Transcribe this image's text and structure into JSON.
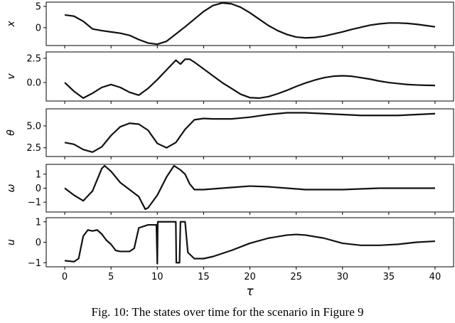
{
  "chart_data": [
    {
      "type": "line",
      "ylabel": "x",
      "color": "#111111",
      "x": [
        0,
        1,
        2,
        3,
        4,
        5,
        6,
        7,
        8,
        9,
        10,
        11,
        12,
        13,
        14,
        15,
        16,
        17,
        18,
        19,
        20,
        21,
        22,
        23,
        24,
        25,
        26,
        27,
        28,
        29,
        30,
        31,
        32,
        33,
        34,
        35,
        36,
        37,
        38,
        39,
        40
      ],
      "values": [
        3,
        2.7,
        1.5,
        -0.3,
        -0.7,
        -1,
        -1.3,
        -1.8,
        -2.8,
        -3.6,
        -3.9,
        -3.2,
        -1.5,
        0.2,
        2,
        3.8,
        5.2,
        5.8,
        5.6,
        4.8,
        3.5,
        2,
        0.5,
        -0.7,
        -1.6,
        -2.2,
        -2.4,
        -2.3,
        -2,
        -1.5,
        -1,
        -0.4,
        0.1,
        0.6,
        0.9,
        1.1,
        1.1,
        1,
        0.8,
        0.5,
        0.2
      ],
      "xlim": [
        -2,
        42
      ],
      "ylim": [
        -4.2,
        6
      ],
      "yticks": [
        0,
        5
      ]
    },
    {
      "type": "line",
      "ylabel": "v",
      "color": "#111111",
      "x": [
        0,
        1,
        2,
        3,
        4,
        5,
        6,
        7,
        8,
        9,
        10,
        11,
        12,
        12.5,
        13,
        13.5,
        14,
        15,
        16,
        17,
        18,
        19,
        20,
        21,
        22,
        23,
        24,
        25,
        26,
        27,
        28,
        29,
        30,
        31,
        32,
        33,
        34,
        35,
        36,
        37,
        38,
        39,
        40
      ],
      "values": [
        0,
        -0.9,
        -1.6,
        -1.1,
        -0.5,
        -0.2,
        -0.5,
        -1.0,
        -1.3,
        -0.6,
        0.3,
        1.3,
        2.3,
        1.9,
        2.4,
        2.4,
        2.1,
        1.4,
        0.7,
        0.0,
        -0.6,
        -1.2,
        -1.55,
        -1.6,
        -1.45,
        -1.15,
        -0.8,
        -0.4,
        -0.05,
        0.25,
        0.5,
        0.65,
        0.7,
        0.65,
        0.5,
        0.35,
        0.15,
        0,
        -0.1,
        -0.2,
        -0.25,
        -0.28,
        -0.3
      ],
      "xlim": [
        -2,
        42
      ],
      "ylim": [
        -1.9,
        3.15
      ],
      "yticks": [
        {
          "value": 0,
          "label": "0.0"
        },
        2.5
      ]
    },
    {
      "type": "line",
      "ylabel": "θ",
      "color": "#111111",
      "x": [
        0,
        1,
        2,
        3,
        4,
        5,
        6,
        7,
        8,
        9,
        10,
        11,
        12,
        13,
        14,
        15,
        16,
        17,
        18,
        19,
        20,
        21,
        22,
        23,
        24,
        25,
        26,
        27,
        28,
        29,
        30,
        31,
        32,
        33,
        34,
        35,
        36,
        37,
        38,
        39,
        40
      ],
      "values": [
        3.1,
        2.9,
        2.3,
        2.0,
        2.6,
        3.9,
        4.9,
        5.3,
        5.2,
        4.5,
        3.0,
        2.5,
        3.1,
        4.6,
        5.7,
        5.85,
        5.8,
        5.8,
        5.8,
        5.9,
        6.0,
        6.15,
        6.3,
        6.4,
        6.5,
        6.5,
        6.5,
        6.45,
        6.4,
        6.35,
        6.3,
        6.25,
        6.2,
        6.2,
        6.2,
        6.2,
        6.2,
        6.25,
        6.3,
        6.35,
        6.4
      ],
      "xlim": [
        -2,
        42
      ],
      "ylim": [
        1.5,
        6.95
      ],
      "yticks": [
        2.5,
        {
          "value": 5,
          "label": "5.0"
        }
      ]
    },
    {
      "type": "line",
      "ylabel": "ω",
      "color": "#111111",
      "x": [
        0,
        1,
        2,
        3,
        4,
        4.3,
        5,
        6,
        7,
        8,
        8.7,
        9,
        10,
        11,
        11.8,
        12.5,
        13,
        13.5,
        14,
        15,
        16,
        18,
        20,
        22,
        24,
        26,
        28,
        30,
        32,
        34,
        36,
        38,
        40
      ],
      "values": [
        0,
        -0.5,
        -0.9,
        -0.2,
        1.4,
        1.6,
        1.2,
        0.4,
        -0.1,
        -0.6,
        -1.5,
        -1.4,
        -0.5,
        0.8,
        1.6,
        1.3,
        1.0,
        0.3,
        -0.1,
        -0.1,
        -0.05,
        0.05,
        0.15,
        0.1,
        0,
        -0.1,
        -0.1,
        -0.1,
        -0.05,
        0,
        0,
        0,
        0
      ],
      "xlim": [
        -2,
        42
      ],
      "ylim": [
        -1.7,
        1.7
      ],
      "yticks": [
        {
          "value": -1,
          "label": "−1"
        },
        0,
        1
      ]
    },
    {
      "type": "line",
      "ylabel": "u",
      "xlabel": "τ",
      "color": "#111111",
      "x": [
        0,
        1,
        1.5,
        2,
        2.5,
        3,
        3.5,
        4,
        4.5,
        5,
        5.5,
        6,
        7,
        7.5,
        8,
        9,
        9.9,
        10,
        10.05,
        12,
        12.05,
        12.4,
        12.5,
        13,
        13.3,
        14,
        15,
        16,
        18,
        20,
        22,
        24,
        25,
        26,
        28,
        30,
        32,
        34,
        36,
        38,
        40
      ],
      "values": [
        -0.9,
        -0.95,
        -0.8,
        0.3,
        0.6,
        0.55,
        0.6,
        0.4,
        0.1,
        -0.1,
        -0.4,
        -0.45,
        -0.45,
        -0.3,
        0.7,
        0.85,
        0.85,
        -1.05,
        1.0,
        1.0,
        -1.0,
        -1.0,
        1.0,
        1.0,
        -0.5,
        -0.8,
        -0.8,
        -0.7,
        -0.4,
        -0.05,
        0.2,
        0.35,
        0.38,
        0.35,
        0.2,
        -0.05,
        -0.15,
        -0.15,
        -0.1,
        0,
        0.05
      ],
      "xlim": [
        -2,
        42
      ],
      "ylim": [
        -1.2,
        1.2
      ],
      "yticks": [
        {
          "value": -1,
          "label": "−1"
        },
        0,
        1
      ],
      "xticks": [
        0,
        5,
        10,
        15,
        20,
        25,
        30,
        35,
        40
      ]
    }
  ],
  "caption": "Fig. 10: The states over time for the scenario in Figure 9"
}
